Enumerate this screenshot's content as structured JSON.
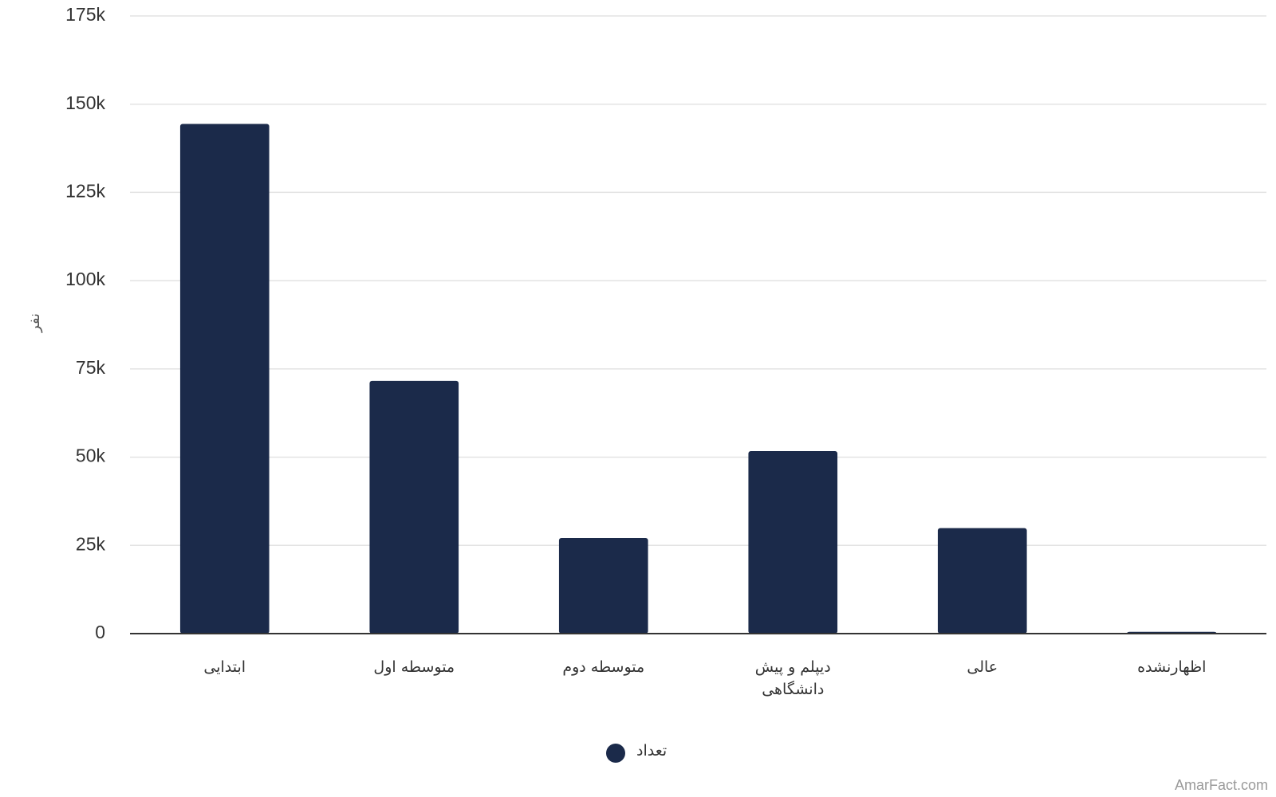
{
  "chart_data": {
    "type": "bar",
    "y_label": "نفر",
    "categories": [
      "ابتدایی",
      "متوسطه اول",
      "متوسطه دوم",
      "دیپلم و پیش دانشگاهی",
      "عالی",
      "اظهارنشده"
    ],
    "series": [
      {
        "name": "تعداد",
        "color": "#1b2a4a",
        "values": [
          144400,
          71600,
          27100,
          51700,
          29900,
          500
        ]
      }
    ],
    "ylim": [
      0,
      175000
    ],
    "yticks": [
      0,
      {
        "value": 25000,
        "label": "25k"
      },
      {
        "value": 50000,
        "label": "50k"
      },
      {
        "value": 75000,
        "label": "75k"
      },
      {
        "value": 100000,
        "label": "100k"
      },
      {
        "value": 125000,
        "label": "125k"
      },
      {
        "value": 150000,
        "label": "150k"
      },
      {
        "value": 175000,
        "label": "175k"
      }
    ],
    "grid": true
  },
  "credit": "AmarFact.com"
}
